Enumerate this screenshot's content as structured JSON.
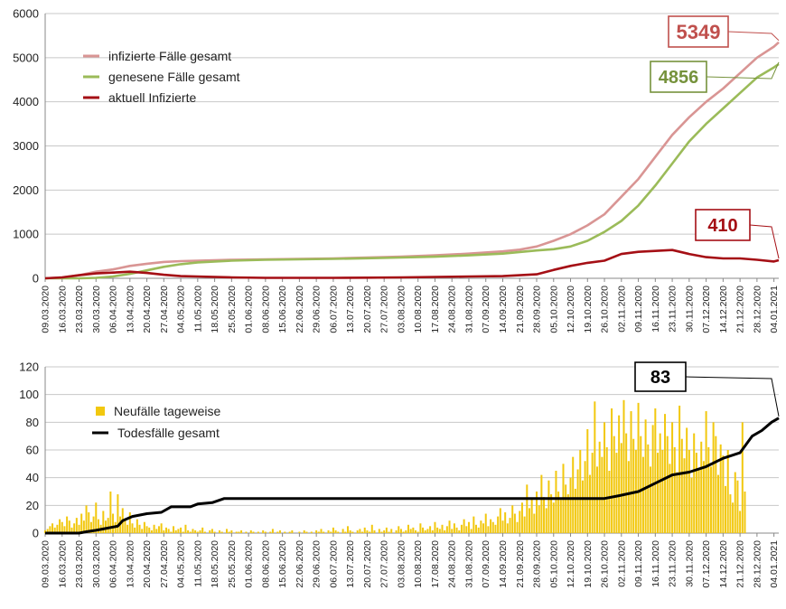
{
  "chart_data": [
    {
      "type": "line",
      "ylim": [
        0,
        6000
      ],
      "yticks": [
        "0",
        "1000",
        "2000",
        "3000",
        "4000",
        "5000",
        "6000"
      ],
      "grid": "horizontal",
      "legend_position": "top-left",
      "date_range": [
        "2020-03-09",
        "2021-01-06"
      ],
      "x_tick_labels": [
        "09.03.2020",
        "16.03.2020",
        "23.03.2020",
        "30.03.2020",
        "06.04.2020",
        "13.04.2020",
        "20.04.2020",
        "27.04.2020",
        "04.05.2020",
        "11.05.2020",
        "18.05.2020",
        "25.05.2020",
        "01.06.2020",
        "08.06.2020",
        "15.06.2020",
        "22.06.2020",
        "29.06.2020",
        "06.07.2020",
        "13.07.2020",
        "20.07.2020",
        "27.07.2020",
        "03.08.2020",
        "10.08.2020",
        "17.08.2020",
        "24.08.2020",
        "31.08.2020",
        "07.09.2020",
        "14.09.2020",
        "21.09.2020",
        "28.09.2020",
        "05.10.2020",
        "12.10.2020",
        "19.10.2020",
        "26.10.2020",
        "02.11.2020",
        "09.11.2020",
        "16.11.2020",
        "23.11.2020",
        "30.11.2020",
        "07.12.2020",
        "14.12.2020",
        "21.12.2020",
        "28.12.2020",
        "04.01.2021"
      ],
      "series": [
        {
          "name": "infizierte Fälle gesamt",
          "color": "#d99594",
          "points": [
            [
              "2020-03-09",
              0
            ],
            [
              "2020-03-16",
              20
            ],
            [
              "2020-03-23",
              70
            ],
            [
              "2020-03-30",
              150
            ],
            [
              "2020-04-06",
              200
            ],
            [
              "2020-04-13",
              280
            ],
            [
              "2020-04-20",
              330
            ],
            [
              "2020-04-27",
              370
            ],
            [
              "2020-05-04",
              390
            ],
            [
              "2020-05-11",
              400
            ],
            [
              "2020-05-25",
              420
            ],
            [
              "2020-06-08",
              430
            ],
            [
              "2020-06-22",
              440
            ],
            [
              "2020-07-06",
              450
            ],
            [
              "2020-07-20",
              470
            ],
            [
              "2020-08-03",
              490
            ],
            [
              "2020-08-17",
              520
            ],
            [
              "2020-08-31",
              560
            ],
            [
              "2020-09-14",
              610
            ],
            [
              "2020-09-21",
              650
            ],
            [
              "2020-09-28",
              720
            ],
            [
              "2020-10-05",
              850
            ],
            [
              "2020-10-12",
              1000
            ],
            [
              "2020-10-19",
              1200
            ],
            [
              "2020-10-26",
              1450
            ],
            [
              "2020-11-02",
              1850
            ],
            [
              "2020-11-09",
              2250
            ],
            [
              "2020-11-16",
              2750
            ],
            [
              "2020-11-23",
              3250
            ],
            [
              "2020-11-30",
              3650
            ],
            [
              "2020-12-07",
              4000
            ],
            [
              "2020-12-14",
              4300
            ],
            [
              "2020-12-21",
              4650
            ],
            [
              "2020-12-28",
              5000
            ],
            [
              "2021-01-04",
              5250
            ],
            [
              "2021-01-06",
              5349
            ]
          ]
        },
        {
          "name": "genesene Fälle gesamt",
          "color": "#9bbb59",
          "points": [
            [
              "2020-03-09",
              0
            ],
            [
              "2020-03-23",
              0
            ],
            [
              "2020-03-30",
              10
            ],
            [
              "2020-04-06",
              40
            ],
            [
              "2020-04-13",
              100
            ],
            [
              "2020-04-20",
              180
            ],
            [
              "2020-04-27",
              260
            ],
            [
              "2020-05-04",
              320
            ],
            [
              "2020-05-11",
              360
            ],
            [
              "2020-05-25",
              400
            ],
            [
              "2020-06-08",
              420
            ],
            [
              "2020-06-22",
              430
            ],
            [
              "2020-07-06",
              440
            ],
            [
              "2020-07-20",
              455
            ],
            [
              "2020-08-03",
              470
            ],
            [
              "2020-08-17",
              490
            ],
            [
              "2020-08-31",
              520
            ],
            [
              "2020-09-14",
              560
            ],
            [
              "2020-09-28",
              630
            ],
            [
              "2020-10-05",
              660
            ],
            [
              "2020-10-12",
              720
            ],
            [
              "2020-10-19",
              850
            ],
            [
              "2020-10-26",
              1050
            ],
            [
              "2020-11-02",
              1300
            ],
            [
              "2020-11-09",
              1650
            ],
            [
              "2020-11-16",
              2100
            ],
            [
              "2020-11-23",
              2600
            ],
            [
              "2020-11-30",
              3100
            ],
            [
              "2020-12-07",
              3500
            ],
            [
              "2020-12-14",
              3850
            ],
            [
              "2020-12-21",
              4200
            ],
            [
              "2020-12-28",
              4550
            ],
            [
              "2021-01-04",
              4780
            ],
            [
              "2021-01-06",
              4856
            ]
          ]
        },
        {
          "name": "aktuell Infizierte",
          "color": "#a50f15",
          "points": [
            [
              "2020-03-09",
              0
            ],
            [
              "2020-03-16",
              20
            ],
            [
              "2020-03-23",
              70
            ],
            [
              "2020-03-30",
              110
            ],
            [
              "2020-04-06",
              130
            ],
            [
              "2020-04-13",
              150
            ],
            [
              "2020-04-20",
              120
            ],
            [
              "2020-04-27",
              80
            ],
            [
              "2020-05-04",
              50
            ],
            [
              "2020-05-11",
              40
            ],
            [
              "2020-05-25",
              20
            ],
            [
              "2020-06-08",
              10
            ],
            [
              "2020-06-22",
              10
            ],
            [
              "2020-07-06",
              10
            ],
            [
              "2020-07-20",
              15
            ],
            [
              "2020-08-03",
              20
            ],
            [
              "2020-08-17",
              30
            ],
            [
              "2020-08-31",
              40
            ],
            [
              "2020-09-14",
              50
            ],
            [
              "2020-09-28",
              90
            ],
            [
              "2020-10-05",
              190
            ],
            [
              "2020-10-12",
              280
            ],
            [
              "2020-10-19",
              350
            ],
            [
              "2020-10-26",
              400
            ],
            [
              "2020-11-02",
              550
            ],
            [
              "2020-11-09",
              600
            ],
            [
              "2020-11-16",
              620
            ],
            [
              "2020-11-23",
              640
            ],
            [
              "2020-11-30",
              550
            ],
            [
              "2020-12-07",
              480
            ],
            [
              "2020-12-14",
              450
            ],
            [
              "2020-12-21",
              450
            ],
            [
              "2020-12-28",
              420
            ],
            [
              "2021-01-04",
              380
            ],
            [
              "2021-01-06",
              410
            ]
          ]
        }
      ],
      "annotations": [
        {
          "text": "5349",
          "series": "infizierte Fälle gesamt",
          "color": "#c0504d"
        },
        {
          "text": "4856",
          "series": "genesene Fälle gesamt",
          "color": "#76923c"
        },
        {
          "text": "410",
          "series": "aktuell Infizierte",
          "color": "#a50f15"
        }
      ]
    },
    {
      "type": "bar",
      "ylim": [
        0,
        120
      ],
      "yticks": [
        "0",
        "20",
        "40",
        "60",
        "80",
        "100",
        "120"
      ],
      "grid": "horizontal",
      "legend_position": "top-left",
      "date_range": [
        "2020-03-09",
        "2021-01-06"
      ],
      "x_tick_labels": [
        "09.03.2020",
        "16.03.2020",
        "23.03.2020",
        "30.03.2020",
        "06.04.2020",
        "13.04.2020",
        "20.04.2020",
        "27.04.2020",
        "04.05.2020",
        "11.05.2020",
        "18.05.2020",
        "25.05.2020",
        "01.06.2020",
        "08.06.2020",
        "15.06.2020",
        "22.06.2020",
        "29.06.2020",
        "06.07.2020",
        "13.07.2020",
        "20.07.2020",
        "27.07.2020",
        "03.08.2020",
        "10.08.2020",
        "17.08.2020",
        "24.08.2020",
        "31.08.2020",
        "07.09.2020",
        "14.09.2020",
        "21.09.2020",
        "28.09.2020",
        "05.10.2020",
        "12.10.2020",
        "19.10.2020",
        "26.10.2020",
        "02.11.2020",
        "09.11.2020",
        "16.11.2020",
        "23.11.2020",
        "30.11.2020",
        "07.12.2020",
        "14.12.2020",
        "21.12.2020",
        "28.12.2020",
        "04.01.2021"
      ],
      "series": [
        {
          "name": "Neufälle tageweise",
          "color": "#f2c80f",
          "kind": "bar",
          "daily_values": [
            2,
            3,
            5,
            7,
            4,
            6,
            10,
            8,
            5,
            12,
            9,
            4,
            7,
            11,
            6,
            14,
            9,
            20,
            15,
            8,
            12,
            22,
            10,
            6,
            16,
            9,
            11,
            30,
            14,
            8,
            28,
            12,
            18,
            9,
            6,
            15,
            7,
            4,
            10,
            6,
            3,
            8,
            5,
            4,
            2,
            6,
            3,
            5,
            7,
            2,
            4,
            3,
            1,
            5,
            2,
            3,
            4,
            1,
            6,
            2,
            1,
            3,
            2,
            1,
            2,
            4,
            1,
            0,
            2,
            3,
            1,
            0,
            2,
            1,
            0,
            3,
            1,
            2,
            0,
            1,
            1,
            2,
            0,
            1,
            0,
            2,
            1,
            0,
            1,
            0,
            2,
            1,
            0,
            1,
            3,
            0,
            1,
            2,
            0,
            1,
            0,
            1,
            2,
            0,
            0,
            1,
            0,
            2,
            1,
            0,
            1,
            0,
            2,
            1,
            3,
            1,
            0,
            2,
            1,
            4,
            2,
            1,
            0,
            3,
            1,
            5,
            2,
            1,
            0,
            2,
            3,
            1,
            4,
            2,
            1,
            6,
            2,
            0,
            3,
            1,
            2,
            4,
            1,
            3,
            0,
            2,
            5,
            3,
            1,
            2,
            6,
            3,
            4,
            2,
            1,
            7,
            4,
            2,
            3,
            5,
            2,
            8,
            4,
            3,
            6,
            2,
            5,
            9,
            3,
            7,
            4,
            2,
            6,
            10,
            5,
            8,
            3,
            12,
            6,
            4,
            9,
            7,
            14,
            5,
            10,
            8,
            6,
            12,
            18,
            9,
            15,
            7,
            11,
            20,
            14,
            8,
            16,
            22,
            12,
            35,
            18,
            25,
            14,
            30,
            20,
            42,
            26,
            18,
            38,
            28,
            22,
            45,
            30,
            24,
            50,
            35,
            28,
            40,
            55,
            32,
            46,
            60,
            38,
            52,
            75,
            42,
            58,
            95,
            48,
            66,
            55,
            80,
            62,
            45,
            90,
            70,
            58,
            85,
            65,
            96,
            72,
            52,
            88,
            68,
            60,
            94,
            70,
            55,
            82,
            64,
            48,
            78,
            90,
            58,
            72,
            60,
            86,
            70,
            50,
            80,
            62,
            44,
            92,
            68,
            54,
            76,
            60,
            40,
            72,
            58,
            46,
            66,
            52,
            88,
            62,
            48,
            80,
            70,
            42,
            64,
            56,
            34,
            60,
            28,
            22,
            44,
            38,
            16,
            80,
            30
          ]
        },
        {
          "name": "Todesfälle gesamt",
          "color": "#000000",
          "kind": "line",
          "points": [
            [
              "2020-03-09",
              0
            ],
            [
              "2020-03-23",
              0
            ],
            [
              "2020-03-26",
              1
            ],
            [
              "2020-03-30",
              2
            ],
            [
              "2020-04-02",
              3
            ],
            [
              "2020-04-08",
              5
            ],
            [
              "2020-04-10",
              9
            ],
            [
              "2020-04-14",
              12
            ],
            [
              "2020-04-20",
              14
            ],
            [
              "2020-04-26",
              15
            ],
            [
              "2020-04-30",
              19
            ],
            [
              "2020-05-08",
              19
            ],
            [
              "2020-05-11",
              21
            ],
            [
              "2020-05-17",
              22
            ],
            [
              "2020-05-22",
              25
            ],
            [
              "2020-06-08",
              25
            ],
            [
              "2020-07-06",
              25
            ],
            [
              "2020-08-03",
              25
            ],
            [
              "2020-09-07",
              25
            ],
            [
              "2020-10-05",
              25
            ],
            [
              "2020-10-26",
              25
            ],
            [
              "2020-11-01",
              27
            ],
            [
              "2020-11-09",
              30
            ],
            [
              "2020-11-16",
              36
            ],
            [
              "2020-11-23",
              42
            ],
            [
              "2020-11-30",
              44
            ],
            [
              "2020-12-07",
              48
            ],
            [
              "2020-12-14",
              54
            ],
            [
              "2020-12-21",
              58
            ],
            [
              "2020-12-26",
              70
            ],
            [
              "2020-12-30",
              74
            ],
            [
              "2021-01-03",
              80
            ],
            [
              "2021-01-06",
              83
            ]
          ]
        }
      ],
      "annotations": [
        {
          "text": "83",
          "series": "Todesfälle gesamt",
          "color": "#000000"
        }
      ]
    }
  ]
}
